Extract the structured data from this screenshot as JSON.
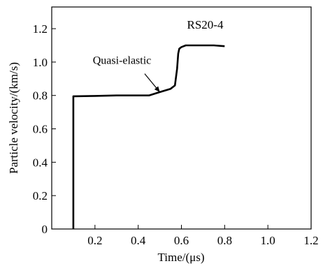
{
  "chart_data": {
    "type": "line",
    "xlabel": "Time/(μs)",
    "ylabel": "Particle velocity/(km/s)",
    "xlim": [
      0,
      1.2
    ],
    "ylim": [
      0,
      1.33
    ],
    "x_ticks": [
      {
        "value": 0.2,
        "label": "0.2"
      },
      {
        "value": 0.4,
        "label": "0.4"
      },
      {
        "value": 0.6,
        "label": "0.6"
      },
      {
        "value": 0.8,
        "label": "0.8"
      },
      {
        "value": 1.0,
        "label": "1.0"
      },
      {
        "value": 1.2,
        "label": "1.2"
      }
    ],
    "y_ticks": [
      {
        "value": 0,
        "label": "0"
      },
      {
        "value": 0.2,
        "label": "0.2"
      },
      {
        "value": 0.4,
        "label": "0.4"
      },
      {
        "value": 0.6,
        "label": "0.6"
      },
      {
        "value": 0.8,
        "label": "0.8"
      },
      {
        "value": 1.0,
        "label": "1.0"
      },
      {
        "value": 1.2,
        "label": "1.2"
      }
    ],
    "grid": false,
    "series": [
      {
        "name": "RS20-4",
        "x": [
          0.1,
          0.1,
          0.2,
          0.3,
          0.45,
          0.5,
          0.55,
          0.57,
          0.58,
          0.585,
          0.59,
          0.6,
          0.62,
          0.65,
          0.7,
          0.75,
          0.8
        ],
        "y": [
          0.0,
          0.795,
          0.797,
          0.8,
          0.8,
          0.82,
          0.84,
          0.86,
          0.96,
          1.05,
          1.08,
          1.09,
          1.1,
          1.1,
          1.1,
          1.1,
          1.095
        ]
      }
    ],
    "annotations": [
      {
        "text": "Quasi-elastic",
        "x": 0.19,
        "y": 0.99,
        "arrow_to": [
          0.5,
          0.82
        ]
      }
    ]
  }
}
